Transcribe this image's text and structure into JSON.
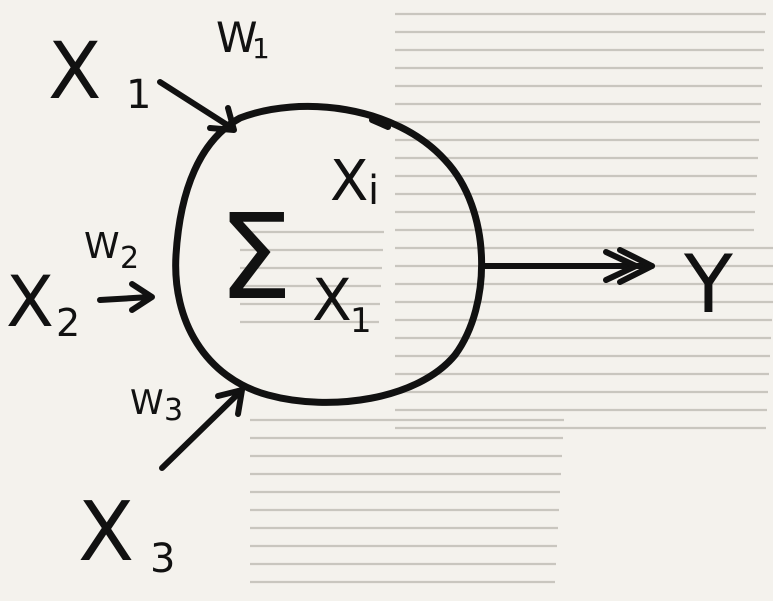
{
  "inputs": [
    {
      "symbol": "X",
      "index": "1",
      "weight": "W",
      "weight_index": "1"
    },
    {
      "symbol": "X",
      "index": "2",
      "weight": "W",
      "weight_index": "2"
    },
    {
      "symbol": "X",
      "index": "3",
      "weight": "W",
      "weight_index": "3"
    }
  ],
  "node": {
    "sum_symbol": "Σ",
    "upper_limit": "X",
    "upper_limit_index": "i",
    "lower_limit": "X",
    "lower_limit_index": "1"
  },
  "output": {
    "label": "Y"
  },
  "colors": {
    "ink": "#111111",
    "paper": "#f4f2ed",
    "bleed_through_text": "#c9c6bf"
  }
}
